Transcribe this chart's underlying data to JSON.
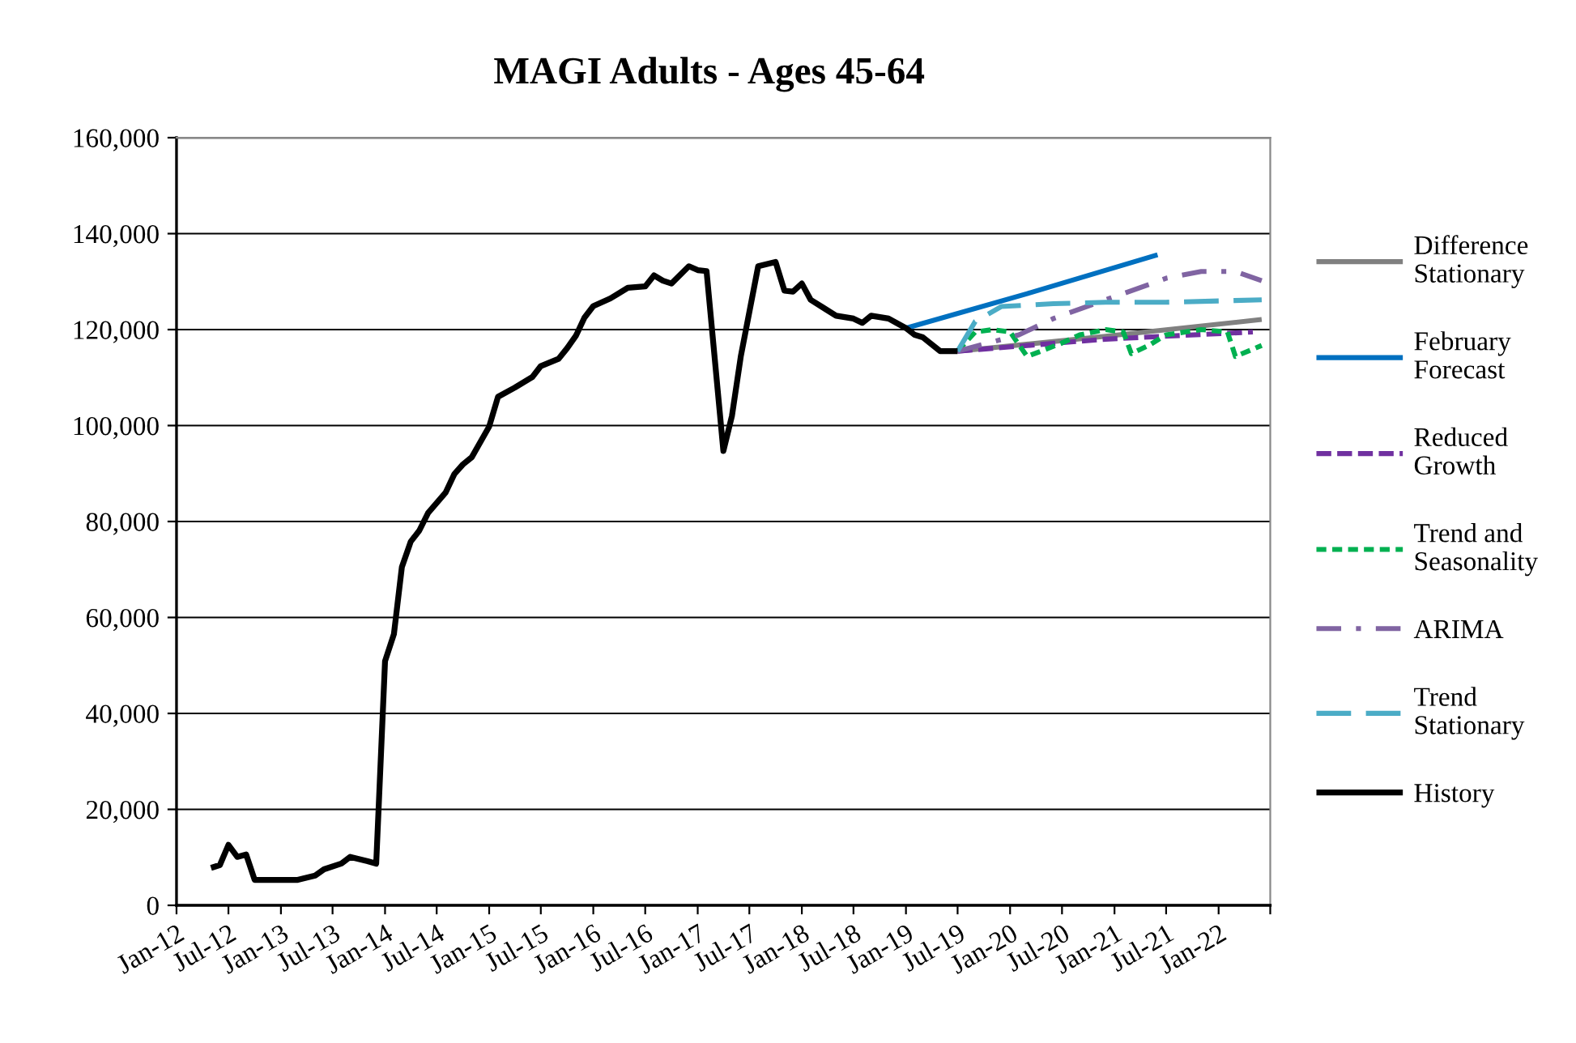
{
  "chart_data": {
    "type": "line",
    "title": "MAGI Adults - Ages 45-64",
    "xlim": [
      "2012-01",
      "2022-07"
    ],
    "xticks": [
      {
        "value": "2012-01",
        "label": "Jan-12"
      },
      {
        "value": "2012-07",
        "label": "Jul-12"
      },
      {
        "value": "2013-01",
        "label": "Jan-13"
      },
      {
        "value": "2013-07",
        "label": "Jul-13"
      },
      {
        "value": "2014-01",
        "label": "Jan-14"
      },
      {
        "value": "2014-07",
        "label": "Jul-14"
      },
      {
        "value": "2015-01",
        "label": "Jan-15"
      },
      {
        "value": "2015-07",
        "label": "Jul-15"
      },
      {
        "value": "2016-01",
        "label": "Jan-16"
      },
      {
        "value": "2016-07",
        "label": "Jul-16"
      },
      {
        "value": "2017-01",
        "label": "Jan-17"
      },
      {
        "value": "2017-07",
        "label": "Jul-17"
      },
      {
        "value": "2018-01",
        "label": "Jan-18"
      },
      {
        "value": "2018-07",
        "label": "Jul-18"
      },
      {
        "value": "2019-01",
        "label": "Jan-19"
      },
      {
        "value": "2019-07",
        "label": "Jul-19"
      },
      {
        "value": "2020-01",
        "label": "Jan-20"
      },
      {
        "value": "2020-07",
        "label": "Jul-20"
      },
      {
        "value": "2021-01",
        "label": "Jan-21"
      },
      {
        "value": "2021-07",
        "label": "Jul-21"
      },
      {
        "value": "2022-01",
        "label": "Jan-22"
      },
      {
        "value": "2022-07",
        "label": null
      }
    ],
    "ylim": [
      0,
      160000
    ],
    "yticks": [
      0,
      {
        "value": 20000,
        "label": "20,000"
      },
      {
        "value": 40000,
        "label": "40,000"
      },
      {
        "value": 60000,
        "label": "60,000"
      },
      {
        "value": 80000,
        "label": "80,000"
      },
      {
        "value": 100000,
        "label": "100,000"
      },
      {
        "value": 120000,
        "label": "120,000"
      },
      {
        "value": 140000,
        "label": "140,000"
      },
      {
        "value": 160000,
        "label": "160,000"
      }
    ],
    "grid": "y",
    "legend": "right",
    "marker": "none",
    "series": [
      {
        "name": "Difference\nStationary",
        "color": "#808080",
        "line_style": "solid",
        "x": [
          "2019-07",
          "2020-12",
          "2022-06"
        ],
        "values": [
          115500,
          118600,
          122100
        ]
      },
      {
        "name": "February\nForecast",
        "color": "#0070c0",
        "line_style": "solid",
        "x": [
          "2019-01",
          "2020-03",
          "2021-06"
        ],
        "values": [
          120300,
          127500,
          135600
        ]
      },
      {
        "name": "Reduced\nGrowth",
        "color": "#7030a0",
        "line_style": "dashed",
        "x": [
          "2019-07",
          "2020-12",
          "2022-05"
        ],
        "values": [
          115500,
          118000,
          119500
        ]
      },
      {
        "name": "Trend and\nSeasonality",
        "color": "#00b050",
        "line_style": "dotted",
        "x": [
          "2019-07",
          "2019-09",
          "2019-11",
          "2020-01",
          "2020-03",
          "2020-07",
          "2020-09",
          "2020-12",
          "2021-02",
          "2021-03",
          "2021-05",
          "2021-07",
          "2021-11",
          "2022-02",
          "2022-03",
          "2022-06"
        ],
        "values": [
          115500,
          119500,
          120000,
          119500,
          114400,
          117200,
          118900,
          120000,
          119500,
          115000,
          116700,
          118900,
          120000,
          119500,
          114400,
          116700
        ]
      },
      {
        "name": "ARIMA",
        "color": "#8064a2",
        "line_style": "dashdot",
        "x": [
          "2019-07",
          "2020-02",
          "2020-06",
          "2020-12",
          "2021-07",
          "2021-11",
          "2022-03",
          "2022-06"
        ],
        "values": [
          115500,
          118900,
          122300,
          126200,
          130700,
          132100,
          132100,
          130200
        ]
      },
      {
        "name": "Trend\nStationary",
        "color": "#4bacc6",
        "line_style": "longdash",
        "x": [
          "2019-07",
          "2019-09",
          "2019-12",
          "2020-06",
          "2020-12",
          "2021-07",
          "2022-06"
        ],
        "values": [
          115500,
          121700,
          124800,
          125400,
          125700,
          125700,
          126200
        ]
      },
      {
        "name": "History",
        "color": "#000000",
        "line_style": "solid",
        "x": [
          "2012-05",
          "2012-06",
          "2012-07",
          "2012-08",
          "2012-09",
          "2012-10",
          "2013-03",
          "2013-05",
          "2013-06",
          "2013-08",
          "2013-09",
          "2013-11",
          "2013-12",
          "2014-01",
          "2014-02",
          "2014-03",
          "2014-04",
          "2014-05",
          "2014-06",
          "2014-08",
          "2014-09",
          "2014-10",
          "2014-11",
          "2015-01",
          "2015-02",
          "2015-04",
          "2015-06",
          "2015-07",
          "2015-09",
          "2015-10",
          "2015-11",
          "2015-12",
          "2016-01",
          "2016-03",
          "2016-05",
          "2016-07",
          "2016-08",
          "2016-09",
          "2016-10",
          "2016-12",
          "2017-01",
          "2017-02",
          "2017-04",
          "2017-05",
          "2017-06",
          "2017-08",
          "2017-10",
          "2017-11",
          "2017-12",
          "2018-01",
          "2018-02",
          "2018-05",
          "2018-07",
          "2018-08",
          "2018-09",
          "2018-11",
          "2019-01",
          "2019-02",
          "2019-03",
          "2019-05",
          "2019-07"
        ],
        "values": [
          7800,
          8400,
          12600,
          10100,
          10600,
          5300,
          5300,
          6200,
          7500,
          8700,
          10100,
          9200,
          8700,
          50900,
          56500,
          70500,
          75800,
          78100,
          81800,
          86000,
          89900,
          91900,
          93400,
          99800,
          106000,
          107900,
          110100,
          112400,
          113900,
          116100,
          118700,
          122500,
          124900,
          126500,
          128700,
          129000,
          131300,
          130200,
          129600,
          133200,
          132400,
          132200,
          94700,
          102000,
          114400,
          133200,
          134100,
          128100,
          127900,
          129600,
          126200,
          122900,
          122300,
          121400,
          122900,
          122300,
          120300,
          118900,
          118400,
          115500,
          115500
        ]
      }
    ]
  }
}
